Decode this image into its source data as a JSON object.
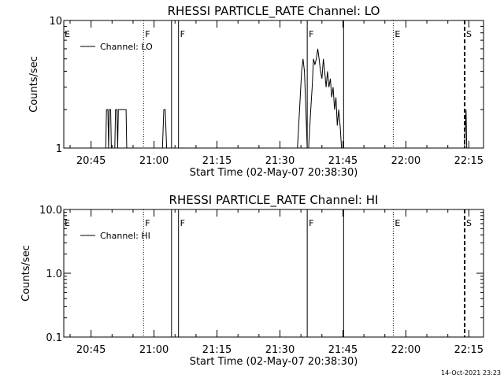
{
  "chart_data": [
    {
      "type": "line",
      "title": "RHESSI PARTICLE_RATE Channel: LO",
      "xlabel": "Start Time (02-May-07 20:38:30)",
      "ylabel": "Counts/sec",
      "y_scale": "log",
      "ylim": [
        1,
        10
      ],
      "y_ticks": [
        1,
        10
      ],
      "y_tick_labels": [
        "1",
        "10"
      ],
      "xlim": [
        "20:38:30",
        "22:18:30"
      ],
      "x_ticks": [
        "20:45",
        "21:00",
        "21:15",
        "21:30",
        "21:45",
        "22:00",
        "22:15"
      ],
      "legend": {
        "label": "Channel: LO",
        "placement": "top-left"
      },
      "grid": false,
      "series": [
        {
          "name": "Channel: LO",
          "points": [
            [
              "20:38:30",
              1
            ],
            [
              "20:48:30",
              1
            ],
            [
              "20:48:40",
              2
            ],
            [
              "20:49:00",
              2
            ],
            [
              "20:49:10",
              1
            ],
            [
              "20:49:20",
              2
            ],
            [
              "20:49:40",
              2
            ],
            [
              "20:49:50",
              1
            ],
            [
              "20:50:40",
              1
            ],
            [
              "20:50:50",
              2
            ],
            [
              "20:51:10",
              2
            ],
            [
              "20:51:20",
              1
            ],
            [
              "20:51:30",
              2
            ],
            [
              "20:53:20",
              2
            ],
            [
              "20:53:30",
              1
            ],
            [
              "21:02:00",
              1
            ],
            [
              "21:02:20",
              2
            ],
            [
              "21:02:40",
              2
            ],
            [
              "21:03:00",
              1
            ],
            [
              "21:34:10",
              1
            ],
            [
              "21:34:40",
              2
            ],
            [
              "21:35:10",
              4
            ],
            [
              "21:35:30",
              5
            ],
            [
              "21:35:50",
              4
            ],
            [
              "21:36:10",
              2
            ],
            [
              "21:36:30",
              1
            ],
            [
              "21:36:50",
              1
            ],
            [
              "21:37:20",
              2
            ],
            [
              "21:37:40",
              3
            ],
            [
              "21:38:00",
              5
            ],
            [
              "21:38:20",
              4.5
            ],
            [
              "21:38:40",
              5
            ],
            [
              "21:39:00",
              6
            ],
            [
              "21:39:20",
              5
            ],
            [
              "21:39:40",
              4
            ],
            [
              "21:40:00",
              3.5
            ],
            [
              "21:40:20",
              5
            ],
            [
              "21:40:40",
              4
            ],
            [
              "21:41:00",
              3
            ],
            [
              "21:41:20",
              4
            ],
            [
              "21:41:40",
              3
            ],
            [
              "21:42:00",
              3.5
            ],
            [
              "21:42:20",
              2.5
            ],
            [
              "21:42:40",
              3
            ],
            [
              "21:43:00",
              2
            ],
            [
              "21:43:20",
              2.5
            ],
            [
              "21:43:40",
              1.5
            ],
            [
              "21:44:00",
              2
            ],
            [
              "21:44:20",
              1.5
            ],
            [
              "21:44:40",
              1
            ],
            [
              "22:14:00",
              1
            ],
            [
              "22:14:20",
              2
            ],
            [
              "22:14:30",
              1
            ],
            [
              "22:18:30",
              1
            ]
          ]
        }
      ],
      "markers": [
        {
          "time": "20:38:30",
          "label": "E",
          "style": "none"
        },
        {
          "time": "20:57:30",
          "label": "F",
          "style": "dotted"
        },
        {
          "time": "21:04:10",
          "label": "",
          "style": "solid"
        },
        {
          "time": "21:05:50",
          "label": "F",
          "style": "solid"
        },
        {
          "time": "21:36:30",
          "label": "F",
          "style": "solid"
        },
        {
          "time": "21:45:10",
          "label": "",
          "style": "solid"
        },
        {
          "time": "21:57:00",
          "label": "E",
          "style": "dotted"
        },
        {
          "time": "22:14:00",
          "label": "S",
          "style": "dashed"
        }
      ]
    },
    {
      "type": "line",
      "title": "RHESSI PARTICLE_RATE Channel: HI",
      "xlabel": "Start Time (02-May-07 20:38:30)",
      "ylabel": "Counts/sec",
      "y_scale": "log",
      "ylim": [
        0.1,
        10
      ],
      "y_ticks": [
        0.1,
        1,
        10
      ],
      "y_tick_labels": [
        "0.1",
        "1.0",
        "10.0"
      ],
      "xlim": [
        "20:38:30",
        "22:18:30"
      ],
      "x_ticks": [
        "20:45",
        "21:00",
        "21:15",
        "21:30",
        "21:45",
        "22:00",
        "22:15"
      ],
      "legend": {
        "label": "Channel: HI",
        "placement": "top-left"
      },
      "grid": false,
      "series": [
        {
          "name": "Channel: HI",
          "points": []
        }
      ],
      "markers": [
        {
          "time": "20:38:30",
          "label": "E",
          "style": "none"
        },
        {
          "time": "20:57:30",
          "label": "F",
          "style": "dotted"
        },
        {
          "time": "21:04:10",
          "label": "",
          "style": "solid"
        },
        {
          "time": "21:05:50",
          "label": "F",
          "style": "solid"
        },
        {
          "time": "21:36:30",
          "label": "F",
          "style": "solid"
        },
        {
          "time": "21:45:10",
          "label": "",
          "style": "solid"
        },
        {
          "time": "21:57:00",
          "label": "E",
          "style": "dotted"
        },
        {
          "time": "22:14:00",
          "label": "S",
          "style": "dashed"
        }
      ]
    }
  ],
  "footer": {
    "timestamp": "14-Oct-2021 23:23"
  }
}
